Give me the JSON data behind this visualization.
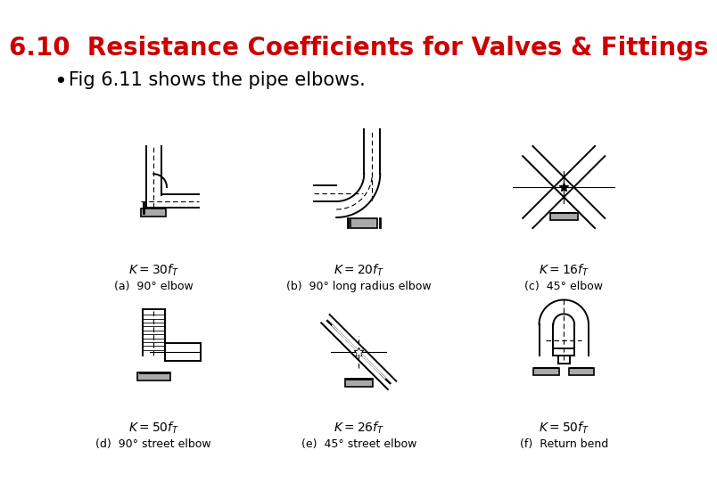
{
  "title": "6.10  Resistance Coefficients for Valves & Fittings",
  "title_color": "#cc0000",
  "title_fontsize": 20,
  "bullet_text": "Fig 6.11 shows the pipe elbows.",
  "bullet_fontsize": 15,
  "bullet_color": "#000000",
  "bg_color": "#ffffff",
  "top_row": {
    "labels": [
      "$K = 30f_T$",
      "$K = 20f_T$",
      "$K = 16f_T$"
    ],
    "captions": [
      "(a)  90° elbow",
      "(b)  90° long radius elbow",
      "(c)  45° elbow"
    ],
    "x_positions": [
      0.18,
      0.5,
      0.82
    ]
  },
  "bottom_row": {
    "labels": [
      "$K = 50f_T$",
      "$K = 26f_T$",
      "$K = 50f_T$"
    ],
    "captions": [
      "(d)  90° street elbow",
      "(e)  45° street elbow",
      "(f)  Return bend"
    ],
    "x_positions": [
      0.18,
      0.5,
      0.82
    ]
  },
  "label_fontsize": 10,
  "caption_fontsize": 9
}
